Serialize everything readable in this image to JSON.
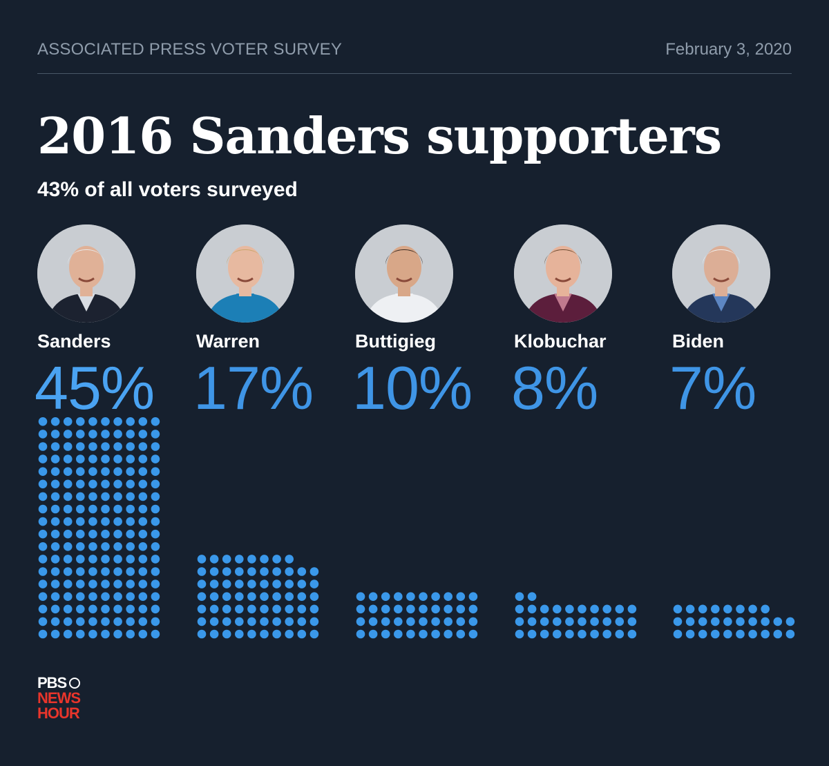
{
  "header": {
    "survey_name": "ASSOCIATED PRESS VOTER SURVEY",
    "date": "February 3, 2020"
  },
  "title": "2016 Sanders supporters",
  "subtitle": "43% of all voters surveyed",
  "chart_data": {
    "type": "bar",
    "title": "2016 Sanders supporters",
    "subtitle": "43% of all voters surveyed",
    "categories": [
      "Sanders",
      "Warren",
      "Buttigieg",
      "Klobuchar",
      "Biden"
    ],
    "values": [
      45,
      17,
      10,
      8,
      7
    ],
    "value_labels": [
      "45%",
      "17%",
      "10%",
      "8%",
      "7%"
    ],
    "unit": "%",
    "encoding": "dot grid, one dot per 0.25%",
    "colors": {
      "leader": "#4aa3f2",
      "others": "#3f95e6",
      "dot": "#3a98ea"
    }
  },
  "candidates": [
    {
      "name": "Sanders",
      "pct": "45%",
      "portrait": "bernie-sanders-photo",
      "suit": "#1c2230",
      "hair": "#e9e9ea",
      "skin": "#e0b197",
      "shirt": "#d9dde3"
    },
    {
      "name": "Warren",
      "pct": "17%",
      "portrait": "elizabeth-warren-photo",
      "suit": "#1c7fb6",
      "hair": "#c9a56a",
      "skin": "#e7b9a0",
      "shirt": "#1c7fb6"
    },
    {
      "name": "Buttigieg",
      "pct": "10%",
      "portrait": "pete-buttigieg-photo",
      "suit": "#eef0f3",
      "hair": "#3a2a20",
      "skin": "#d8a788",
      "shirt": "#eef0f3"
    },
    {
      "name": "Klobuchar",
      "pct": "8%",
      "portrait": "amy-klobuchar-photo",
      "suit": "#5c1e3c",
      "hair": "#6b4a2f",
      "skin": "#e6b39a",
      "shirt": "#c07a8e"
    },
    {
      "name": "Biden",
      "pct": "7%",
      "portrait": "joe-biden-photo",
      "suit": "#24375a",
      "hair": "#f1f1f1",
      "skin": "#dcae96",
      "shirt": "#5d86c2"
    }
  ],
  "logo": {
    "line1": "PBS",
    "line2": "NEWS",
    "line3": "HOUR"
  }
}
